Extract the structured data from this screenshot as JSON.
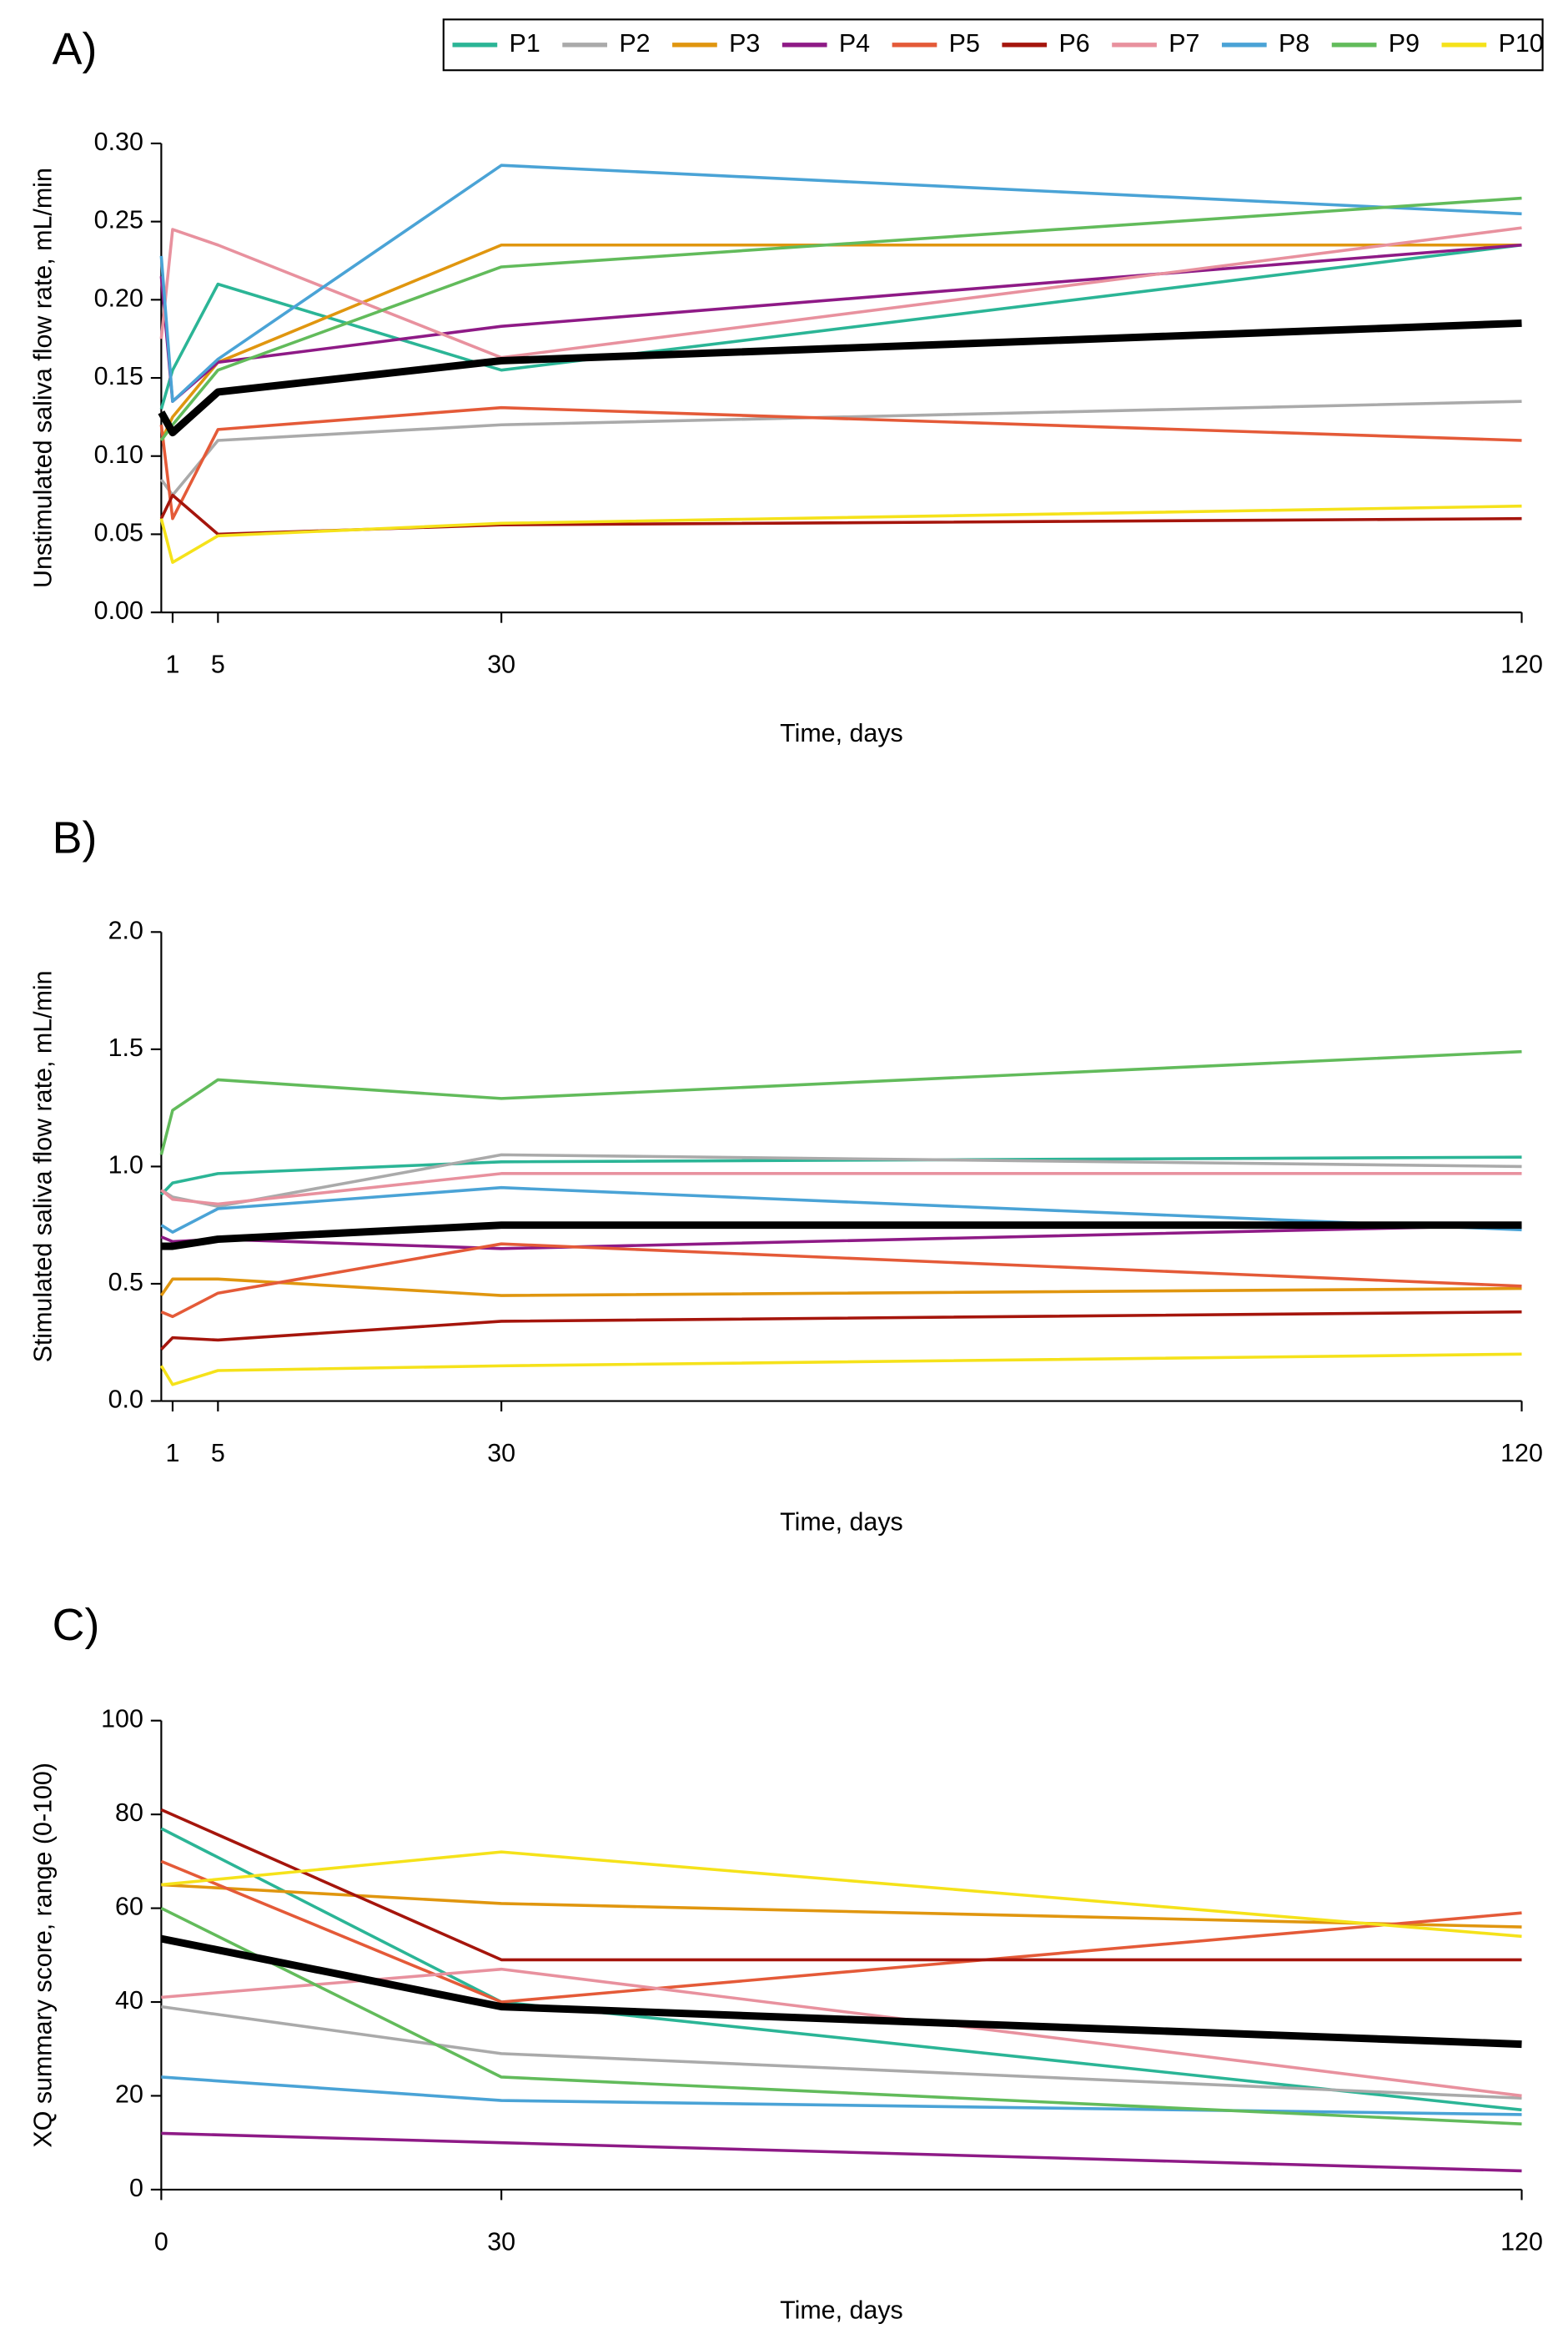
{
  "chart_data": [
    {
      "type": "line",
      "title": "A)",
      "xlabel": "Time, days",
      "ylabel": "Unstimulated saliva flow rate, mL/min",
      "x": [
        0,
        1,
        5,
        30,
        120
      ],
      "xlim": [
        0,
        120
      ],
      "xticks": [
        1,
        5,
        30,
        120
      ],
      "ylim": [
        0,
        0.3
      ],
      "yticks": [
        {
          "value": 0,
          "label": "0.00"
        },
        {
          "value": 0.05,
          "label": "0.05"
        },
        {
          "value": 0.1,
          "label": "0.10"
        },
        {
          "value": 0.15,
          "label": "0.15"
        },
        {
          "value": 0.2,
          "label": "0.20"
        },
        {
          "value": 0.25,
          "label": "0.25"
        },
        {
          "value": 0.3,
          "label": "0.30"
        }
      ],
      "legend": "top-right",
      "series": [
        {
          "name": "P1",
          "color": "#2bb596",
          "values": [
            0.13,
            0.155,
            0.21,
            0.155,
            0.235
          ]
        },
        {
          "name": "P2",
          "color": "#aaaaaa",
          "values": [
            0.085,
            0.075,
            0.11,
            0.12,
            0.135
          ]
        },
        {
          "name": "P3",
          "color": "#e0960f",
          "values": [
            0.11,
            0.125,
            0.16,
            0.235,
            0.235
          ]
        },
        {
          "name": "P4",
          "color": "#8e1a86",
          "values": [
            0.215,
            0.135,
            0.16,
            0.183,
            0.235
          ]
        },
        {
          "name": "P5",
          "color": "#e45a38",
          "values": [
            0.12,
            0.06,
            0.117,
            0.131,
            0.11
          ]
        },
        {
          "name": "P6",
          "color": "#a5150c",
          "values": [
            0.06,
            0.075,
            0.05,
            0.056,
            0.06
          ]
        },
        {
          "name": "P7",
          "color": "#e8919e",
          "values": [
            0.175,
            0.245,
            0.235,
            0.163,
            0.246
          ]
        },
        {
          "name": "P8",
          "color": "#4aa3d6",
          "values": [
            0.228,
            0.135,
            0.162,
            0.286,
            0.255
          ]
        },
        {
          "name": "P9",
          "color": "#62bb5b",
          "values": [
            0.11,
            0.12,
            0.155,
            0.221,
            0.265
          ]
        },
        {
          "name": "P10",
          "color": "#f5e21a",
          "values": [
            0.06,
            0.032,
            0.049,
            0.057,
            0.068
          ]
        },
        {
          "color": "#000000",
          "values": [
            0.128,
            0.115,
            0.141,
            0.161,
            0.185
          ]
        }
      ]
    },
    {
      "type": "line",
      "title": "B)",
      "xlabel": "Time, days",
      "ylabel": "Stimulated saliva flow rate, mL/min",
      "x": [
        0,
        1,
        5,
        30,
        120
      ],
      "xlim": [
        0,
        120
      ],
      "xticks": [
        1,
        5,
        30,
        120
      ],
      "ylim": [
        0,
        2
      ],
      "yticks": [
        {
          "value": 0,
          "label": "0.0"
        },
        {
          "value": 0.5,
          "label": "0.5"
        },
        {
          "value": 1,
          "label": "1.0"
        },
        {
          "value": 1.5,
          "label": "1.5"
        },
        {
          "value": 2,
          "label": "2.0"
        }
      ],
      "series": [
        {
          "color": "#2bb596",
          "values": [
            0.88,
            0.93,
            0.97,
            1.02,
            1.04
          ]
        },
        {
          "color": "#aaaaaa",
          "values": [
            0.9,
            0.87,
            0.83,
            1.05,
            1.0
          ]
        },
        {
          "color": "#e0960f",
          "values": [
            0.45,
            0.52,
            0.52,
            0.45,
            0.48
          ]
        },
        {
          "color": "#8e1a86",
          "values": [
            0.7,
            0.68,
            0.69,
            0.65,
            0.75
          ]
        },
        {
          "color": "#e45a38",
          "values": [
            0.38,
            0.36,
            0.46,
            0.67,
            0.49
          ]
        },
        {
          "color": "#a5150c",
          "values": [
            0.22,
            0.27,
            0.26,
            0.34,
            0.38
          ]
        },
        {
          "color": "#e8919e",
          "values": [
            0.9,
            0.86,
            0.84,
            0.97,
            0.97
          ]
        },
        {
          "color": "#4aa3d6",
          "values": [
            0.75,
            0.72,
            0.82,
            0.91,
            0.73
          ]
        },
        {
          "color": "#62bb5b",
          "values": [
            1.05,
            1.24,
            1.37,
            1.29,
            1.49
          ]
        },
        {
          "color": "#f5e21a",
          "values": [
            0.15,
            0.07,
            0.13,
            0.15,
            0.2
          ]
        },
        {
          "color": "#000000",
          "values": [
            0.66,
            0.66,
            0.69,
            0.75,
            0.75
          ]
        }
      ]
    },
    {
      "type": "line",
      "title": "C)",
      "xlabel": "Time, days",
      "ylabel": "XQ summary score, range (0-100)",
      "x": [
        0,
        30,
        120
      ],
      "xlim": [
        0,
        120
      ],
      "xticks": [
        0,
        30,
        120
      ],
      "ylim": [
        0,
        100
      ],
      "yticks": [
        0,
        20,
        40,
        60,
        80,
        100
      ],
      "series": [
        {
          "color": "#2bb596",
          "values": [
            77,
            40,
            17
          ]
        },
        {
          "color": "#aaaaaa",
          "values": [
            39,
            29,
            19.5
          ]
        },
        {
          "color": "#e0960f",
          "values": [
            65,
            61,
            56
          ]
        },
        {
          "color": "#8e1a86",
          "values": [
            12,
            10,
            4
          ]
        },
        {
          "color": "#e45a38",
          "values": [
            70,
            40,
            59
          ]
        },
        {
          "color": "#a5150c",
          "values": [
            81,
            49,
            49
          ]
        },
        {
          "color": "#e8919e",
          "values": [
            41,
            47,
            20
          ]
        },
        {
          "color": "#4aa3d6",
          "values": [
            24,
            19,
            16
          ]
        },
        {
          "color": "#62bb5b",
          "values": [
            60,
            24,
            14
          ]
        },
        {
          "color": "#f5e21a",
          "values": [
            65,
            72,
            54
          ]
        },
        {
          "color": "#000000",
          "values": [
            53.5,
            39,
            31
          ]
        }
      ]
    }
  ]
}
